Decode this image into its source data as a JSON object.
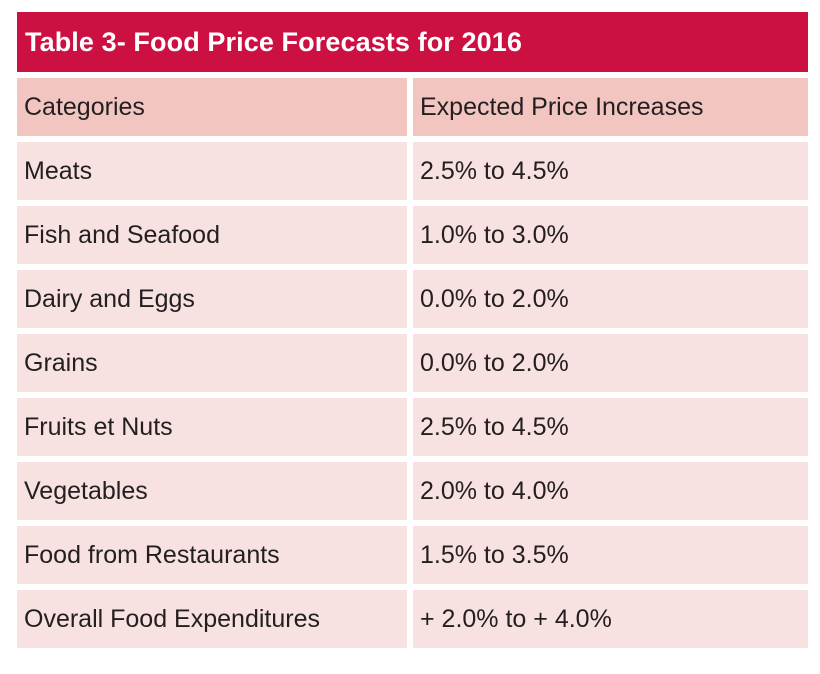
{
  "table": {
    "title": "Table 3- Food Price Forecasts for 2016",
    "columns": [
      "Categories",
      "Expected Price Increases"
    ],
    "rows": [
      [
        "Meats",
        "2.5% to 4.5%"
      ],
      [
        "Fish and Seafood",
        "1.0% to 3.0%"
      ],
      [
        "Dairy and Eggs",
        "0.0% to 2.0%"
      ],
      [
        "Grains",
        "0.0% to 2.0%"
      ],
      [
        "Fruits et Nuts",
        "2.5% to 4.5%"
      ],
      [
        "Vegetables",
        "2.0% to 4.0%"
      ],
      [
        "Food from Restaurants",
        "1.5% to 3.5%"
      ],
      [
        "Overall Food Expenditures",
        "+ 2.0% to + 4.0%"
      ]
    ]
  },
  "colors": {
    "title_background": "#cc1042",
    "header_background": "#f2c5c1",
    "row_background": "#f7e1e1"
  }
}
